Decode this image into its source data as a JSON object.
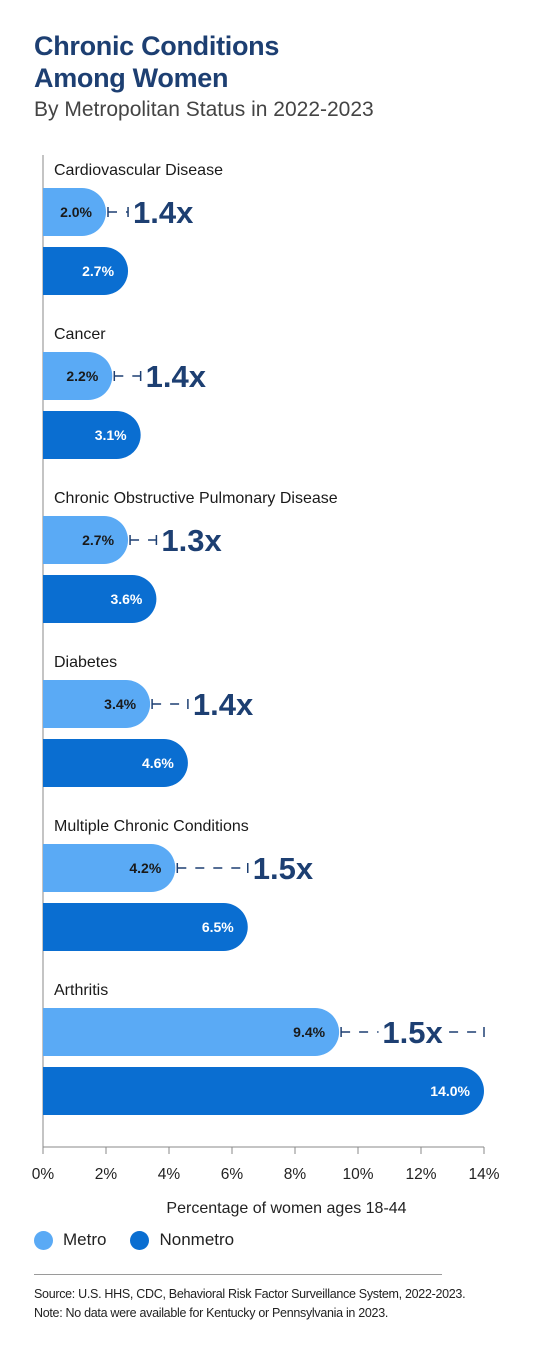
{
  "title_line1": "Chronic Conditions",
  "title_line2": "Among Women",
  "subtitle": "By Metropolitan Status in 2022-2023",
  "legend": [
    {
      "label": "Metro",
      "color": "#5aaaf5"
    },
    {
      "label": "Nonmetro",
      "color": "#0a6ed1"
    }
  ],
  "footnotes": {
    "source": "Source: U.S. HHS, CDC, Behavioral Risk Factor Surveillance System, 2022-2023.",
    "note": "Note: No data were available for Kentucky or Pennsylvania in 2023."
  },
  "chart_data": {
    "type": "bar",
    "orientation": "horizontal",
    "xlabel": "Percentage of women ages 18-44",
    "xlim": [
      0,
      14
    ],
    "xticks": [
      "0%",
      "2%",
      "4%",
      "6%",
      "8%",
      "10%",
      "12%",
      "14%"
    ],
    "categories": [
      "Cardiovascular Disease",
      "Cancer",
      "Chronic Obstructive Pulmonary Disease",
      "Diabetes",
      "Multiple Chronic Conditions",
      "Arthritis"
    ],
    "series": [
      {
        "name": "Metro",
        "color": "#5aaaf5",
        "values": [
          2.0,
          2.2,
          2.7,
          3.4,
          4.2,
          9.4
        ],
        "labels": [
          "2.0%",
          "2.2%",
          "2.7%",
          "3.4%",
          "4.2%",
          "9.4%"
        ]
      },
      {
        "name": "Nonmetro",
        "color": "#0a6ed1",
        "values": [
          2.7,
          3.1,
          3.6,
          4.6,
          6.5,
          14.0
        ],
        "labels": [
          "2.7%",
          "3.1%",
          "3.6%",
          "4.6%",
          "6.5%",
          "14.0%"
        ]
      }
    ],
    "ratios": [
      "1.4x",
      "1.4x",
      "1.3x",
      "1.4x",
      "1.5x",
      "1.5x"
    ],
    "ratio_color": "#1d3f72",
    "grid": false
  }
}
